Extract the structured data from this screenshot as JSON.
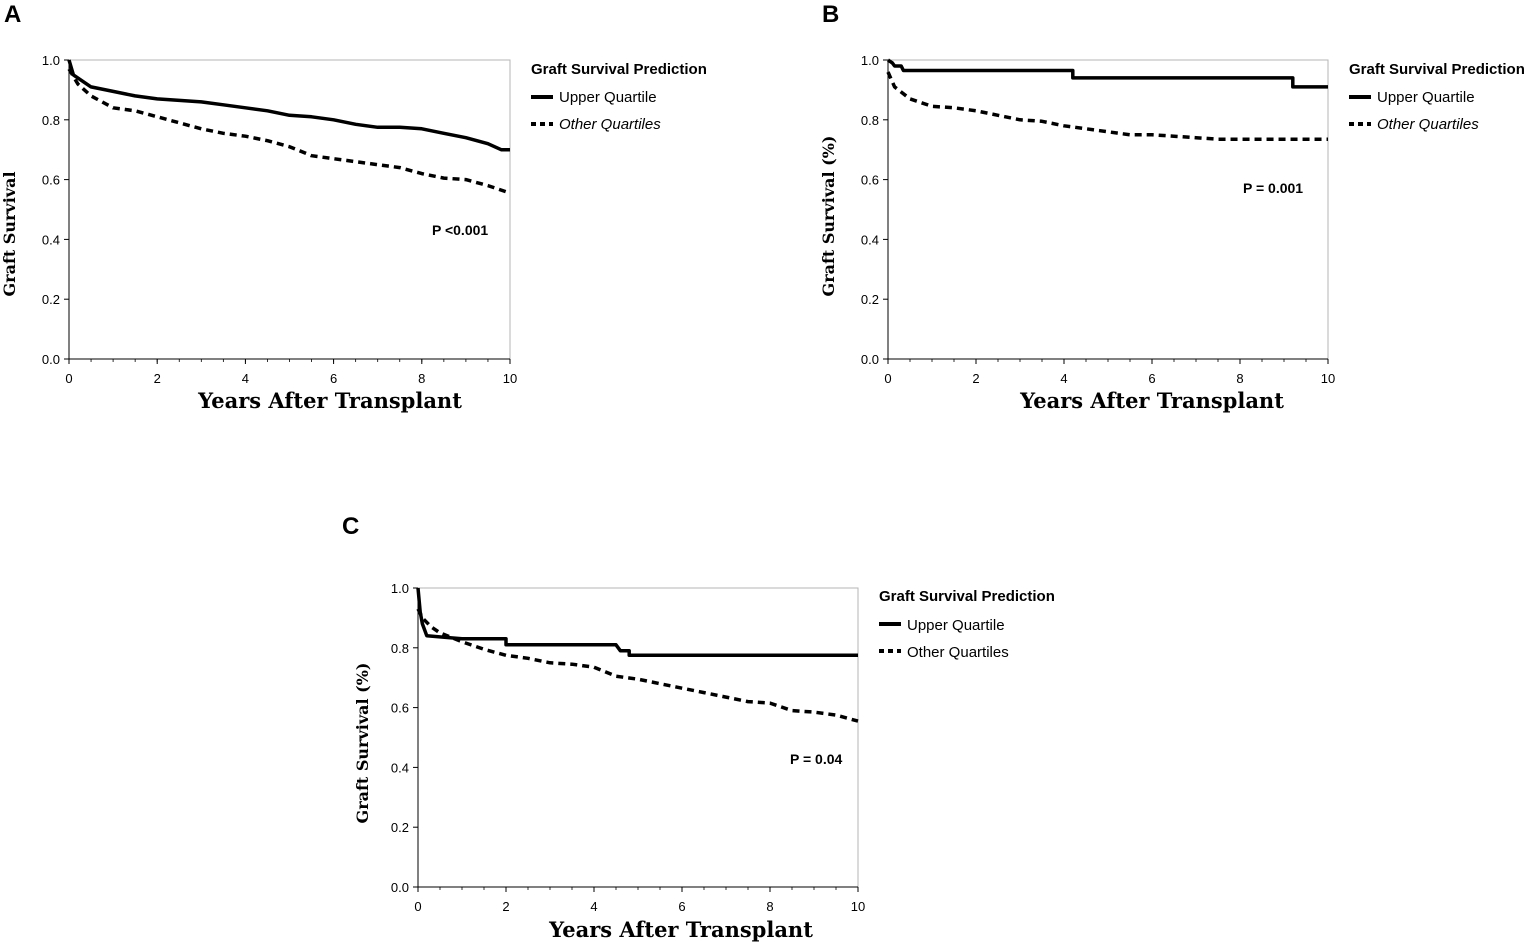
{
  "chart_data": [
    {
      "type": "line",
      "panel_label": "A",
      "title": "",
      "xlabel": "Years After Transplant",
      "ylabel": "Graft Survival",
      "xlim": [
        0,
        10
      ],
      "ylim": [
        0,
        1.0
      ],
      "x_ticks": [
        "0",
        "2",
        "4",
        "6",
        "8",
        "10"
      ],
      "y_ticks": [
        "0.0",
        "0.2",
        "0.4",
        "0.6",
        "0.8",
        "1.0"
      ],
      "legend_title": "Graft Survival Prediction",
      "annotation": "P <0.001",
      "annotation_pos": [
        8.3,
        0.43
      ],
      "series": [
        {
          "name": "Upper Quartile",
          "style": "solid",
          "italic": false,
          "points": [
            [
              0,
              1.0
            ],
            [
              0.1,
              0.95
            ],
            [
              0.3,
              0.93
            ],
            [
              0.5,
              0.91
            ],
            [
              1,
              0.895
            ],
            [
              1.5,
              0.88
            ],
            [
              2,
              0.87
            ],
            [
              2.5,
              0.865
            ],
            [
              3,
              0.86
            ],
            [
              3.5,
              0.85
            ],
            [
              4,
              0.84
            ],
            [
              4.5,
              0.83
            ],
            [
              5,
              0.815
            ],
            [
              5.5,
              0.81
            ],
            [
              6,
              0.8
            ],
            [
              6.5,
              0.785
            ],
            [
              7,
              0.775
            ],
            [
              7.5,
              0.775
            ],
            [
              8,
              0.77
            ],
            [
              8.5,
              0.755
            ],
            [
              9,
              0.74
            ],
            [
              9.5,
              0.72
            ],
            [
              9.8,
              0.7
            ],
            [
              10,
              0.7
            ]
          ]
        },
        {
          "name": "Other Quartiles",
          "style": "dashed",
          "italic": true,
          "points": [
            [
              0,
              0.97
            ],
            [
              0.2,
              0.92
            ],
            [
              0.5,
              0.88
            ],
            [
              1,
              0.84
            ],
            [
              1.5,
              0.83
            ],
            [
              2,
              0.81
            ],
            [
              2.5,
              0.79
            ],
            [
              3,
              0.77
            ],
            [
              3.5,
              0.755
            ],
            [
              4,
              0.745
            ],
            [
              4.5,
              0.73
            ],
            [
              5,
              0.71
            ],
            [
              5.5,
              0.68
            ],
            [
              6,
              0.67
            ],
            [
              6.5,
              0.66
            ],
            [
              7,
              0.65
            ],
            [
              7.5,
              0.64
            ],
            [
              8,
              0.62
            ],
            [
              8.5,
              0.605
            ],
            [
              9,
              0.6
            ],
            [
              9.5,
              0.58
            ],
            [
              10,
              0.555
            ]
          ]
        }
      ]
    },
    {
      "type": "line",
      "panel_label": "B",
      "title": "",
      "xlabel": "Years After Transplant",
      "ylabel": "Graft Survival (%)",
      "xlim": [
        0,
        10
      ],
      "ylim": [
        0,
        1.0
      ],
      "x_ticks": [
        "0",
        "2",
        "4",
        "6",
        "8",
        "10"
      ],
      "y_ticks": [
        "0.0",
        "0.2",
        "0.4",
        "0.6",
        "0.8",
        "1.0"
      ],
      "legend_title": "Graft Survival Prediction",
      "annotation": "P = 0.001",
      "annotation_pos": [
        8.5,
        0.57
      ],
      "series": [
        {
          "name": "Upper Quartile",
          "style": "solid",
          "italic": false,
          "points": [
            [
              0,
              1.0
            ],
            [
              0.1,
              0.99
            ],
            [
              0.15,
              0.98
            ],
            [
              0.3,
              0.98
            ],
            [
              0.35,
              0.965
            ],
            [
              4.2,
              0.965
            ],
            [
              4.2,
              0.94
            ],
            [
              9.2,
              0.94
            ],
            [
              9.2,
              0.91
            ],
            [
              10,
              0.91
            ]
          ]
        },
        {
          "name": "Other Quartiles",
          "style": "dashed",
          "italic": true,
          "points": [
            [
              0,
              0.96
            ],
            [
              0.15,
              0.91
            ],
            [
              0.5,
              0.87
            ],
            [
              1,
              0.845
            ],
            [
              1.5,
              0.84
            ],
            [
              2,
              0.83
            ],
            [
              2.5,
              0.815
            ],
            [
              3,
              0.8
            ],
            [
              3.5,
              0.795
            ],
            [
              4,
              0.78
            ],
            [
              4.5,
              0.77
            ],
            [
              5,
              0.76
            ],
            [
              5.5,
              0.75
            ],
            [
              6,
              0.75
            ],
            [
              6.5,
              0.745
            ],
            [
              7,
              0.74
            ],
            [
              7.5,
              0.735
            ],
            [
              8,
              0.735
            ],
            [
              8.5,
              0.735
            ],
            [
              9,
              0.735
            ],
            [
              10,
              0.735
            ]
          ]
        }
      ]
    },
    {
      "type": "line",
      "panel_label": "C",
      "title": "",
      "xlabel": "Years After Transplant",
      "ylabel": "Graft Survival (%)",
      "xlim": [
        0,
        10
      ],
      "ylim": [
        0,
        1.0
      ],
      "x_ticks": [
        "0",
        "2",
        "4",
        "6",
        "8",
        "10"
      ],
      "y_ticks": [
        "0.0",
        "0.2",
        "0.4",
        "0.6",
        "0.8",
        "1.0"
      ],
      "legend_title": "Graft Survival Prediction",
      "annotation": "P = 0.04",
      "annotation_pos": [
        8.5,
        0.43
      ],
      "series": [
        {
          "name": "Upper Quartile",
          "style": "solid",
          "italic": false,
          "points": [
            [
              0,
              1.0
            ],
            [
              0.05,
              0.92
            ],
            [
              0.1,
              0.88
            ],
            [
              0.2,
              0.84
            ],
            [
              1,
              0.83
            ],
            [
              2,
              0.83
            ],
            [
              2,
              0.81
            ],
            [
              4.5,
              0.81
            ],
            [
              4.6,
              0.79
            ],
            [
              4.8,
              0.79
            ],
            [
              4.8,
              0.775
            ],
            [
              10,
              0.775
            ]
          ]
        },
        {
          "name": "Other Quartiles",
          "style": "dashed",
          "italic": false,
          "points": [
            [
              0,
              0.93
            ],
            [
              0.1,
              0.9
            ],
            [
              0.3,
              0.87
            ],
            [
              0.5,
              0.85
            ],
            [
              1,
              0.82
            ],
            [
              1.5,
              0.795
            ],
            [
              2,
              0.775
            ],
            [
              2.5,
              0.765
            ],
            [
              3,
              0.75
            ],
            [
              3.5,
              0.745
            ],
            [
              4,
              0.735
            ],
            [
              4.5,
              0.705
            ],
            [
              5,
              0.695
            ],
            [
              5.5,
              0.68
            ],
            [
              6,
              0.665
            ],
            [
              6.5,
              0.65
            ],
            [
              7,
              0.635
            ],
            [
              7.5,
              0.62
            ],
            [
              8,
              0.615
            ],
            [
              8.5,
              0.59
            ],
            [
              9,
              0.585
            ],
            [
              9.5,
              0.575
            ],
            [
              10,
              0.555
            ]
          ]
        }
      ]
    }
  ]
}
